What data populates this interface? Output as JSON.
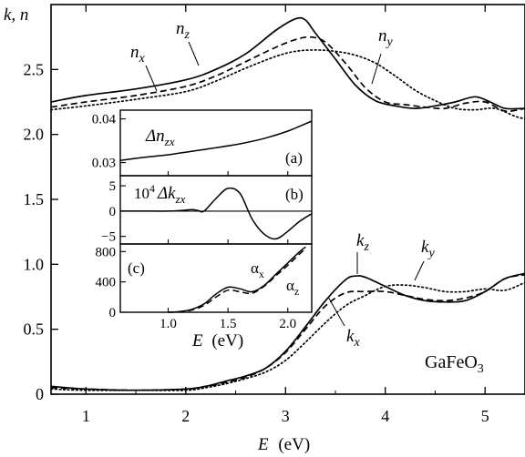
{
  "main": {
    "y_axis_label": "k, n",
    "x_axis_label_var": "E",
    "x_axis_label_unit": "(eV)",
    "material_label": "GaFeO",
    "material_subscript": "3",
    "labels": {
      "n_x": "n",
      "n_x_sub": "x",
      "n_z": "n",
      "n_z_sub": "z",
      "n_y": "n",
      "n_y_sub": "y",
      "k_z": "k",
      "k_z_sub": "z",
      "k_y": "k",
      "k_y_sub": "y",
      "k_x": "k",
      "k_x_sub": "x"
    }
  },
  "inset": {
    "a_label": "(a)",
    "b_label": "(b)",
    "c_label": "(c)",
    "a_ylabel": "Δn",
    "a_ylabel_sub": "zx",
    "b_ylabel_prefix": "10",
    "b_ylabel_exp": "4",
    "b_ylabel": "Δk",
    "b_ylabel_sub": "zx",
    "c_alpha_x": "α",
    "c_alpha_x_sub": "x",
    "c_alpha_z": "α",
    "c_alpha_z_sub": "z",
    "x_axis_label_var": "E",
    "x_axis_label_unit": "(eV)"
  },
  "chart_data": [
    {
      "type": "line",
      "title": "",
      "xlabel": "E (eV)",
      "ylabel": "k, n",
      "xlim": [
        0.65,
        5.4
      ],
      "ylim": [
        0,
        3.0
      ],
      "xticks": [
        1,
        2,
        3,
        4,
        5
      ],
      "yticks": [
        0,
        0.5,
        1.0,
        1.5,
        2.0,
        2.5
      ],
      "ytick_labels": [
        "0",
        "0.5",
        "1.0",
        "1.5",
        "2.0",
        "2.5"
      ],
      "series": [
        {
          "name": "n_z",
          "style": "solid",
          "x": [
            0.65,
            1.0,
            1.5,
            2.0,
            2.3,
            2.6,
            2.9,
            3.1,
            3.2,
            3.3,
            3.5,
            3.7,
            3.9,
            4.1,
            4.3,
            4.5,
            4.7,
            4.9,
            5.05,
            5.2,
            5.4
          ],
          "y": [
            2.25,
            2.3,
            2.35,
            2.42,
            2.5,
            2.62,
            2.8,
            2.89,
            2.88,
            2.78,
            2.58,
            2.38,
            2.26,
            2.22,
            2.2,
            2.22,
            2.25,
            2.29,
            2.25,
            2.2,
            2.2
          ]
        },
        {
          "name": "n_x",
          "style": "dashed",
          "x": [
            0.65,
            1.0,
            1.5,
            2.0,
            2.3,
            2.6,
            2.9,
            3.1,
            3.25,
            3.4,
            3.6,
            3.8,
            4.0,
            4.2,
            4.4,
            4.6,
            4.8,
            5.0,
            5.2,
            5.4
          ],
          "y": [
            2.21,
            2.25,
            2.3,
            2.37,
            2.45,
            2.56,
            2.67,
            2.73,
            2.75,
            2.71,
            2.55,
            2.36,
            2.25,
            2.23,
            2.21,
            2.2,
            2.24,
            2.25,
            2.18,
            2.2
          ]
        },
        {
          "name": "n_y",
          "style": "dotted",
          "x": [
            0.65,
            1.0,
            1.5,
            2.0,
            2.3,
            2.6,
            2.9,
            3.1,
            3.3,
            3.5,
            3.7,
            3.9,
            4.1,
            4.3,
            4.5,
            4.7,
            4.9,
            5.1,
            5.3,
            5.4
          ],
          "y": [
            2.19,
            2.22,
            2.27,
            2.33,
            2.41,
            2.51,
            2.6,
            2.64,
            2.65,
            2.64,
            2.61,
            2.55,
            2.45,
            2.34,
            2.26,
            2.2,
            2.19,
            2.2,
            2.14,
            2.12
          ]
        },
        {
          "name": "k_z",
          "style": "solid",
          "x": [
            0.65,
            1.0,
            1.5,
            2.0,
            2.2,
            2.4,
            2.6,
            2.8,
            3.0,
            3.2,
            3.4,
            3.6,
            3.7,
            3.8,
            4.0,
            4.2,
            4.4,
            4.6,
            4.8,
            5.0,
            5.2,
            5.4
          ],
          "y": [
            0.06,
            0.04,
            0.03,
            0.04,
            0.06,
            0.1,
            0.14,
            0.2,
            0.33,
            0.52,
            0.72,
            0.88,
            0.91,
            0.9,
            0.83,
            0.76,
            0.72,
            0.71,
            0.72,
            0.79,
            0.89,
            0.93
          ]
        },
        {
          "name": "k_x",
          "style": "dashed",
          "x": [
            0.65,
            1.0,
            1.5,
            2.0,
            2.2,
            2.4,
            2.6,
            2.8,
            3.0,
            3.2,
            3.4,
            3.6,
            3.8,
            4.0,
            4.2,
            4.4,
            4.6,
            4.8,
            5.0,
            5.2,
            5.4
          ],
          "y": [
            0.05,
            0.04,
            0.03,
            0.04,
            0.06,
            0.09,
            0.13,
            0.2,
            0.32,
            0.5,
            0.68,
            0.78,
            0.79,
            0.79,
            0.76,
            0.73,
            0.72,
            0.74,
            0.79,
            0.89,
            0.92
          ]
        },
        {
          "name": "k_y",
          "style": "dotted",
          "x": [
            0.65,
            1.0,
            1.5,
            2.0,
            2.2,
            2.4,
            2.6,
            2.8,
            3.0,
            3.2,
            3.4,
            3.6,
            3.8,
            4.0,
            4.2,
            4.4,
            4.6,
            4.8,
            5.0,
            5.2,
            5.4
          ],
          "y": [
            0.04,
            0.03,
            0.03,
            0.03,
            0.05,
            0.08,
            0.12,
            0.17,
            0.26,
            0.4,
            0.55,
            0.68,
            0.76,
            0.83,
            0.84,
            0.82,
            0.79,
            0.79,
            0.81,
            0.8,
            0.86
          ]
        }
      ]
    },
    {
      "type": "line",
      "title": "",
      "panel": "(a)",
      "xlim": [
        0.6,
        2.2
      ],
      "ylim": [
        0.027,
        0.042
      ],
      "yticks": [
        0.03,
        0.04
      ],
      "ytick_labels": [
        "0.03",
        "0.04"
      ],
      "ylabel": "Δn_zx",
      "series": [
        {
          "name": "Δn_zx",
          "style": "solid",
          "x": [
            0.6,
            0.8,
            1.0,
            1.2,
            1.4,
            1.6,
            1.8,
            2.0,
            2.2
          ],
          "y": [
            0.0305,
            0.0312,
            0.0318,
            0.0326,
            0.0334,
            0.0343,
            0.0355,
            0.0372,
            0.0395
          ]
        }
      ]
    },
    {
      "type": "line",
      "title": "",
      "panel": "(b)",
      "xlim": [
        0.6,
        2.2
      ],
      "ylim": [
        -6.5,
        7
      ],
      "yticks": [
        -5,
        0,
        5
      ],
      "ytick_labels": [
        "−5",
        "0",
        "5"
      ],
      "ylabel": "10^4 Δk_zx",
      "series": [
        {
          "name": "10^4 Δk_zx",
          "style": "solid",
          "x": [
            0.6,
            0.8,
            1.0,
            1.1,
            1.2,
            1.25,
            1.3,
            1.4,
            1.5,
            1.6,
            1.7,
            1.8,
            1.9,
            2.0,
            2.1,
            2.2
          ],
          "y": [
            0,
            0,
            0,
            0.1,
            0.3,
            0.1,
            0,
            2.5,
            4.5,
            3.5,
            -1.5,
            -4.5,
            -5.5,
            -4.0,
            -2.0,
            -0.5
          ]
        }
      ]
    },
    {
      "type": "line",
      "title": "",
      "panel": "(c)",
      "xlabel": "E (eV)",
      "xlim": [
        0.6,
        2.2
      ],
      "ylim": [
        0,
        900
      ],
      "xticks": [
        1.0,
        1.5,
        2.0
      ],
      "xtick_labels": [
        "1.0",
        "1.5",
        "2.0"
      ],
      "yticks": [
        0,
        400,
        800
      ],
      "ytick_labels": [
        "0",
        "400",
        "800"
      ],
      "series": [
        {
          "name": "α_x",
          "style": "solid",
          "x": [
            1.0,
            1.1,
            1.2,
            1.3,
            1.4,
            1.5,
            1.6,
            1.7,
            1.8,
            1.9,
            2.0,
            2.1,
            2.15
          ],
          "y": [
            0,
            10,
            40,
            110,
            240,
            330,
            310,
            270,
            350,
            500,
            650,
            800,
            860
          ]
        },
        {
          "name": "α_z",
          "style": "dashed",
          "x": [
            1.0,
            1.1,
            1.2,
            1.3,
            1.4,
            1.5,
            1.6,
            1.7,
            1.8,
            1.9,
            2.0,
            2.1,
            2.15
          ],
          "y": [
            0,
            8,
            30,
            90,
            200,
            290,
            270,
            250,
            340,
            480,
            620,
            770,
            840
          ]
        }
      ]
    }
  ]
}
